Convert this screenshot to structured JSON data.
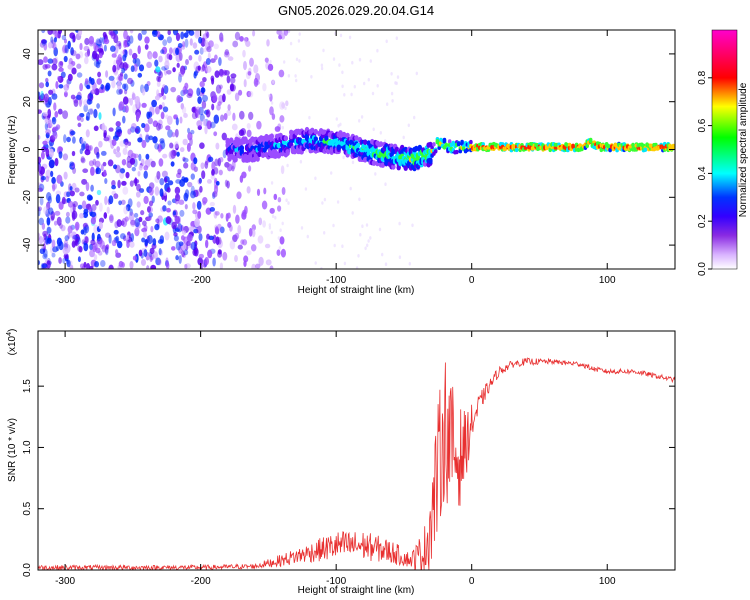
{
  "title": "GN05.2026.029.20.04.G14",
  "chart_data": [
    {
      "type": "heatmap",
      "name": "spectrogram",
      "xlabel": "Height of straight line (km)",
      "ylabel": "Frequency (Hz)",
      "xlim": [
        -320,
        150
      ],
      "ylim": [
        -50,
        50
      ],
      "xticks": [
        -300,
        -200,
        -100,
        0,
        100
      ],
      "yticks": [
        -40,
        -20,
        0,
        20,
        40
      ],
      "colorbar": {
        "label": "Normalized spectral amplitude",
        "range": [
          0.0,
          1.0
        ],
        "ticks": [
          "0.0",
          "0.2",
          "0.4",
          "0.6",
          "0.8"
        ],
        "tick_values": [
          0.0,
          0.2,
          0.4,
          0.6,
          0.8
        ],
        "colors": [
          "#ffffff",
          "#cc99ff",
          "#8a2be2",
          "#4b00ff",
          "#0000ff",
          "#00ffff",
          "#00ff00",
          "#ffff00",
          "#ff0000",
          "#ff00ff"
        ]
      },
      "ridge": [
        {
          "x": -320,
          "f": 0
        },
        {
          "x": -200,
          "f": 0
        },
        {
          "x": -160,
          "f": 0
        },
        {
          "x": -140,
          "f": 2
        },
        {
          "x": -120,
          "f": 4
        },
        {
          "x": -100,
          "f": 3
        },
        {
          "x": -80,
          "f": 0
        },
        {
          "x": -60,
          "f": -3
        },
        {
          "x": -45,
          "f": -4
        },
        {
          "x": -30,
          "f": -2
        },
        {
          "x": -25,
          "f": 3
        },
        {
          "x": -15,
          "f": 1
        },
        {
          "x": -10,
          "f": 1
        },
        {
          "x": 0,
          "f": 1
        },
        {
          "x": 20,
          "f": 1
        },
        {
          "x": 80,
          "f": 1
        },
        {
          "x": 88,
          "f": 3
        },
        {
          "x": 95,
          "f": 1
        },
        {
          "x": 150,
          "f": 1
        }
      ]
    },
    {
      "type": "line",
      "name": "snr",
      "xlabel": "Height of straight line (km)",
      "ylabel": "SNR (10 * v/v)",
      "scale_note": "(x10",
      "scale_exp": "4",
      "xlim": [
        -320,
        150
      ],
      "ylim": [
        0.0,
        1.95
      ],
      "xticks": [
        -300,
        -200,
        -100,
        0,
        100
      ],
      "yticks": [
        "0.0",
        "0.5",
        "1.0",
        "1.5"
      ],
      "ytick_values": [
        0.0,
        0.5,
        1.0,
        1.5
      ],
      "color": "#e83030",
      "series": [
        {
          "name": "SNR (x10^4)",
          "x": [
            -320,
            -200,
            -160,
            -140,
            -120,
            -100,
            -80,
            -60,
            -45,
            -35,
            -30,
            -25,
            -20,
            -15,
            -10,
            -5,
            0,
            10,
            20,
            30,
            40,
            60,
            80,
            90,
            100,
            120,
            150
          ],
          "values": [
            0.02,
            0.02,
            0.03,
            0.08,
            0.14,
            0.2,
            0.2,
            0.15,
            0.08,
            0.15,
            0.4,
            0.8,
            1.2,
            1.0,
            0.9,
            1.0,
            1.2,
            1.45,
            1.62,
            1.68,
            1.7,
            1.7,
            1.68,
            1.64,
            1.62,
            1.62,
            1.55
          ],
          "noise": [
            0.02,
            0.02,
            0.02,
            0.05,
            0.08,
            0.12,
            0.12,
            0.1,
            0.06,
            0.2,
            0.4,
            0.55,
            0.6,
            0.55,
            0.45,
            0.3,
            0.15,
            0.06,
            0.04,
            0.03,
            0.03,
            0.02,
            0.02,
            0.02,
            0.02,
            0.02,
            0.02
          ]
        }
      ]
    }
  ]
}
